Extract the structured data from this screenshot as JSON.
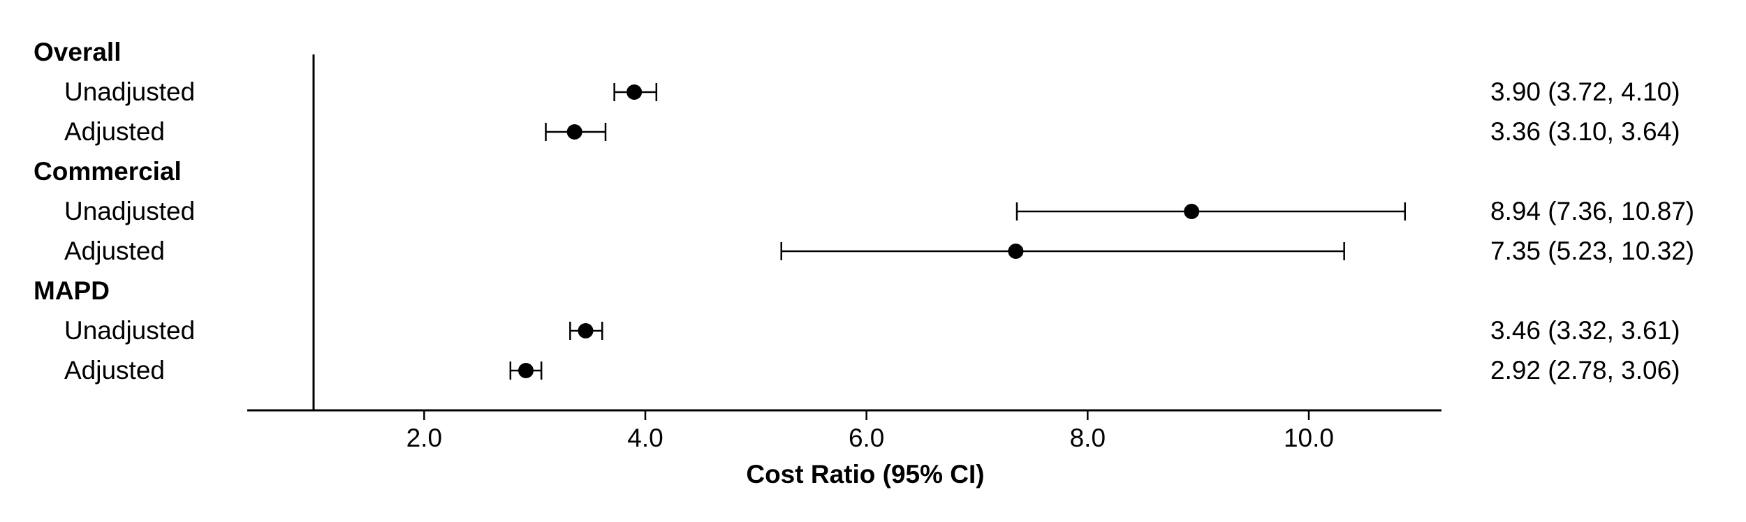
{
  "chart_data": {
    "type": "forest",
    "xlabel": "Cost Ratio (95% CI)",
    "xlim": [
      0.4,
      11.2
    ],
    "reference_line": 1.0,
    "x_ticks": [
      {
        "value": 2,
        "label": "2.0"
      },
      {
        "value": 4,
        "label": "4.0"
      },
      {
        "value": 6,
        "label": "6.0"
      },
      {
        "value": 8,
        "label": "8.0"
      },
      {
        "value": 10,
        "label": "10.0"
      }
    ],
    "groups": [
      {
        "name": "Overall",
        "rows": [
          {
            "label": "Unadjusted",
            "estimate": 3.9,
            "lower": 3.72,
            "upper": 4.1,
            "text": "3.90 (3.72, 4.10)"
          },
          {
            "label": "Adjusted",
            "estimate": 3.36,
            "lower": 3.1,
            "upper": 3.64,
            "text": "3.36 (3.10, 3.64)"
          }
        ]
      },
      {
        "name": "Commercial",
        "rows": [
          {
            "label": "Unadjusted",
            "estimate": 8.94,
            "lower": 7.36,
            "upper": 10.87,
            "text": "8.94 (7.36, 10.87)"
          },
          {
            "label": "Adjusted",
            "estimate": 7.35,
            "lower": 5.23,
            "upper": 10.32,
            "text": "7.35 (5.23, 10.32)"
          }
        ]
      },
      {
        "name": "MAPD",
        "rows": [
          {
            "label": "Unadjusted",
            "estimate": 3.46,
            "lower": 3.32,
            "upper": 3.61,
            "text": "3.46 (3.32, 3.61)"
          },
          {
            "label": "Adjusted",
            "estimate": 2.92,
            "lower": 2.78,
            "upper": 3.06,
            "text": "2.92 (2.78, 3.06)"
          }
        ]
      }
    ]
  }
}
